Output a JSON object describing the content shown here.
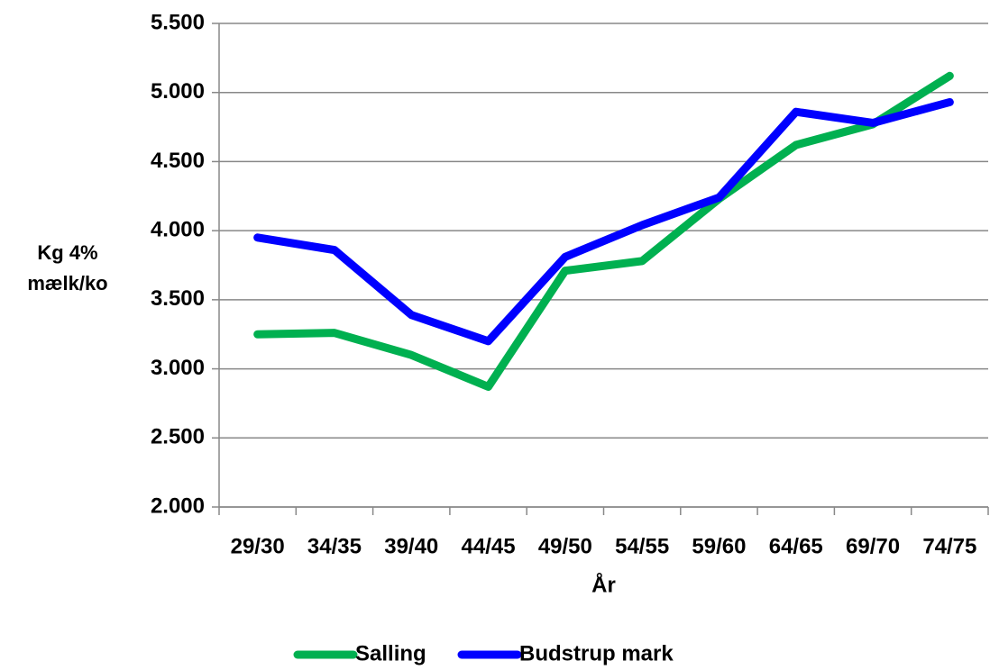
{
  "chart_data": {
    "type": "line",
    "x_label": "År",
    "y_label": "Kg 4% mælk/ko",
    "categories": [
      "29/30",
      "34/35",
      "39/40",
      "44/45",
      "49/50",
      "54/55",
      "59/60",
      "64/65",
      "69/70",
      "74/75"
    ],
    "series": [
      {
        "name": "Salling",
        "color": "#00b050",
        "values": [
          3250,
          3260,
          3100,
          2870,
          3710,
          3780,
          4230,
          4620,
          4770,
          5120
        ]
      },
      {
        "name": "Budstrup mark",
        "color": "#0000ff",
        "values": [
          3950,
          3860,
          3390,
          3200,
          3810,
          4040,
          4240,
          4860,
          4780,
          4930
        ]
      }
    ],
    "ylim": [
      2000,
      5500
    ],
    "yticks": [
      {
        "value": 2000,
        "label": "2.000"
      },
      {
        "value": 2500,
        "label": "2.500"
      },
      {
        "value": 3000,
        "label": "3.000"
      },
      {
        "value": 3500,
        "label": "3.500"
      },
      {
        "value": 4000,
        "label": "4.000"
      },
      {
        "value": 4500,
        "label": "4.500"
      },
      {
        "value": 5000,
        "label": "5.000"
      },
      {
        "value": 5500,
        "label": "5.500"
      }
    ],
    "grid": true,
    "legend": "bottom"
  }
}
